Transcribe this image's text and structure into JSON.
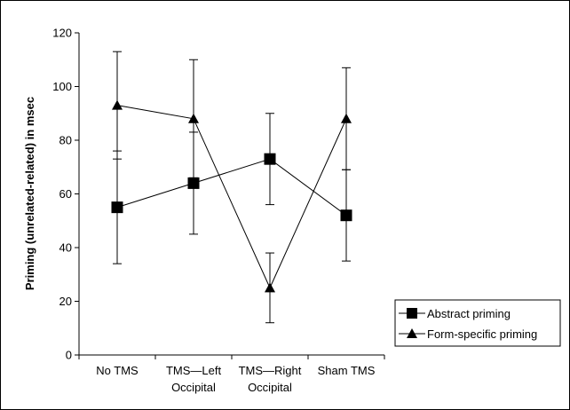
{
  "chart_data": {
    "type": "line",
    "title": "",
    "xlabel": "",
    "ylabel": "Priming (unrelated-related) in msec",
    "ylim": [
      0,
      120
    ],
    "yticks": [
      "0",
      "20",
      "40",
      "60",
      "80",
      "100",
      "120"
    ],
    "categories": [
      [
        "No TMS"
      ],
      [
        "TMS—Left",
        "Occipital"
      ],
      [
        "TMS—Right",
        "Occipital"
      ],
      [
        "Sham TMS"
      ]
    ],
    "series": [
      {
        "name": "Abstract priming",
        "marker": "square",
        "values": [
          55,
          64,
          73,
          52
        ],
        "error_low": [
          34,
          45,
          56,
          35
        ],
        "error_high": [
          76,
          83,
          90,
          69
        ]
      },
      {
        "name": "Form-specific priming",
        "marker": "triangle",
        "values": [
          93,
          88,
          25,
          88
        ],
        "error_low": [
          73,
          66,
          12,
          69
        ],
        "error_high": [
          113,
          110,
          38,
          107
        ]
      }
    ],
    "grid": false,
    "legend_position": "right"
  },
  "colors": {
    "line": "#000000",
    "background": "#ffffff"
  }
}
